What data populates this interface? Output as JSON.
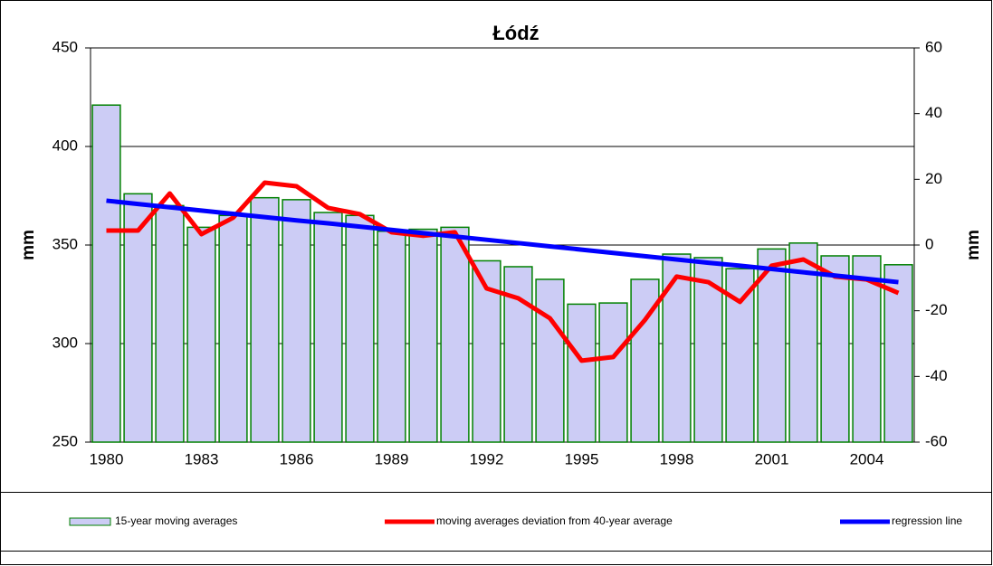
{
  "chart_data": {
    "type": "bar",
    "title": "Łódź",
    "y_label": "mm",
    "y2_label": "mm",
    "categories": [
      "1980",
      null,
      null,
      "1983",
      null,
      null,
      "1986",
      null,
      null,
      "1989",
      null,
      null,
      "1992",
      null,
      null,
      "1995",
      null,
      null,
      "1998",
      null,
      null,
      "2001",
      null,
      null,
      "2004",
      null
    ],
    "ylim": [
      250,
      450
    ],
    "yticks": [
      250,
      300,
      350,
      400,
      450
    ],
    "y2lim": [
      -60,
      60
    ],
    "y2ticks": [
      -60,
      -40,
      -20,
      0,
      20,
      40,
      60
    ],
    "grid": true,
    "legend": "bottom",
    "series": [
      {
        "name": "15-year moving averages",
        "type": "bar",
        "color": "#ccccf5",
        "edge_color": "#008000",
        "values": [
          421,
          376,
          370,
          359,
          365,
          374,
          373,
          366.5,
          365,
          357,
          358,
          359,
          342,
          339,
          332.6,
          320,
          320.6,
          332.6,
          345.4,
          343.6,
          338,
          348,
          351,
          344.5,
          344.5,
          340
        ]
      },
      {
        "name": "moving averages deviation from 40-year average",
        "type": "line",
        "axis": "y2",
        "color": "#ff0000",
        "values": [
          4.4,
          4.4,
          15.7,
          3.3,
          8.3,
          19,
          17.9,
          11.3,
          9.4,
          3.9,
          2.8,
          3.9,
          -13.2,
          -16.2,
          -22.3,
          -35.2,
          -34.1,
          -22.8,
          -9.6,
          -11.3,
          -17.3,
          -6.3,
          -4.4,
          -9.6,
          -10.5,
          -14.6
        ]
      },
      {
        "name": "regression line",
        "type": "line",
        "axis": "y2",
        "color": "#0000ff",
        "values": [
          13.5,
          12.5,
          11.5,
          10.5,
          9.5,
          8.5,
          7.5,
          6.6,
          5.6,
          4.6,
          3.6,
          2.6,
          1.6,
          0.6,
          -0.4,
          -1.4,
          -2.4,
          -3.4,
          -4.4,
          -5.4,
          -6.3,
          -7.3,
          -8.3,
          -9.3,
          -10.3,
          -11.3
        ]
      }
    ]
  }
}
